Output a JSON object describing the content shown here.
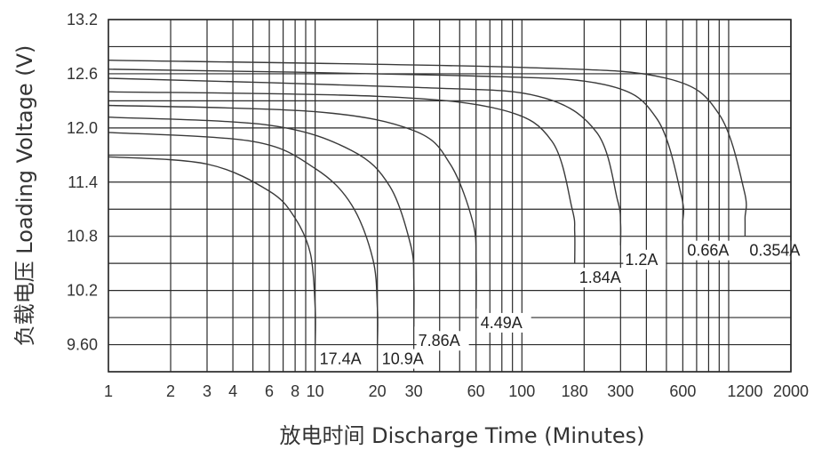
{
  "chart_data": {
    "type": "line",
    "xlabel": "放电时间 Discharge Time (Minutes)",
    "ylabel": "负载电压 Loading Voltage (V)",
    "x_scale": "log",
    "xlim": [
      1,
      2000
    ],
    "ylim": [
      9.3,
      13.2
    ],
    "y_ticks": [
      "13.2",
      "12.6",
      "12.0",
      "11.4",
      "10.8",
      "10.2",
      "9.60"
    ],
    "y_tick_values": [
      13.2,
      12.6,
      12.0,
      11.4,
      10.8,
      10.2,
      9.6
    ],
    "x_ticks": [
      "1",
      "2",
      "3",
      "4",
      "6",
      "8",
      "10",
      "20",
      "30",
      "60",
      "100",
      "180",
      "300",
      "600",
      "1200",
      "2000"
    ],
    "x_tick_values": [
      1,
      2,
      3,
      4,
      6,
      8,
      10,
      20,
      30,
      60,
      100,
      180,
      300,
      600,
      1200,
      2000
    ],
    "grid": true,
    "series": [
      {
        "name": "17.4A",
        "x": [
          1,
          3,
          6,
          8,
          9.5,
          10,
          10
        ],
        "y": [
          11.68,
          11.6,
          11.3,
          11.0,
          10.6,
          10.0,
          9.6
        ]
      },
      {
        "name": "10.9A",
        "x": [
          1,
          5,
          10,
          15,
          19,
          20,
          20
        ],
        "y": [
          11.95,
          11.85,
          11.55,
          11.15,
          10.55,
          10.0,
          9.6
        ]
      },
      {
        "name": "7.86A",
        "x": [
          1,
          6,
          15,
          23,
          29,
          30,
          30
        ],
        "y": [
          12.12,
          12.03,
          11.75,
          11.35,
          10.7,
          10.3,
          9.8
        ]
      },
      {
        "name": "4.49A",
        "x": [
          1,
          10,
          30,
          45,
          58,
          60,
          60
        ],
        "y": [
          12.25,
          12.18,
          11.97,
          11.6,
          10.95,
          10.5,
          10.0
        ]
      },
      {
        "name": "1.84A",
        "x": [
          1,
          20,
          80,
          140,
          175,
          180,
          180
        ],
        "y": [
          12.4,
          12.35,
          12.2,
          11.85,
          11.1,
          10.85,
          10.5
        ]
      },
      {
        "name": "1.2A",
        "x": [
          1,
          30,
          120,
          230,
          290,
          300,
          300
        ],
        "y": [
          12.55,
          12.45,
          12.35,
          11.95,
          11.2,
          10.95,
          10.7
        ]
      },
      {
        "name": "0.66A",
        "x": [
          1,
          50,
          250,
          450,
          590,
          600,
          600
        ],
        "y": [
          12.65,
          12.58,
          12.48,
          12.1,
          11.25,
          10.95,
          10.8
        ]
      },
      {
        "name": "0.354A",
        "x": [
          1,
          100,
          500,
          900,
          1190,
          1200,
          1200
        ],
        "y": [
          12.75,
          12.67,
          12.55,
          12.15,
          11.3,
          11.0,
          10.8
        ]
      }
    ]
  }
}
